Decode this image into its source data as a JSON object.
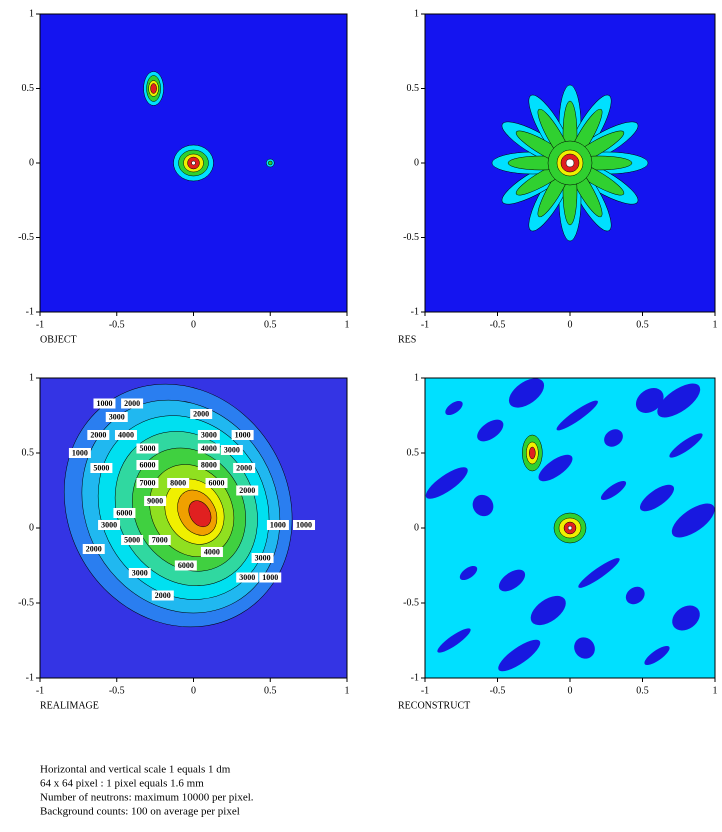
{
  "chart_data": [
    {
      "type": "contour",
      "title": "OBJECT",
      "xlim": [
        -1,
        1
      ],
      "ylim": [
        -1,
        1
      ],
      "xticks": [
        -1,
        -0.5,
        0,
        0.5,
        1
      ],
      "yticks": [
        -1,
        -0.5,
        0,
        0.5,
        1
      ]
    },
    {
      "type": "contour",
      "title": "RES",
      "xlim": [
        -1,
        1
      ],
      "ylim": [
        -1,
        1
      ],
      "xticks": [
        -1,
        -0.5,
        0,
        0.5,
        1
      ],
      "yticks": [
        -1,
        -0.5,
        0,
        0.5,
        1
      ]
    },
    {
      "type": "contour",
      "title": "REALIMAGE",
      "xlim": [
        -1,
        1
      ],
      "ylim": [
        -1,
        1
      ],
      "xticks": [
        -1,
        -0.5,
        0,
        0.5,
        1
      ],
      "yticks": [
        -1,
        -0.5,
        0,
        0.5,
        1
      ],
      "contour_labels": [
        1000,
        2000,
        2000,
        3000,
        2000,
        4000,
        3000,
        1000,
        1000,
        5000,
        4000,
        3000,
        5000,
        6000,
        8000,
        2000,
        7000,
        8000,
        9000,
        6000,
        2000,
        6000,
        3000,
        1000,
        1000,
        5000,
        7000,
        2000,
        3000,
        6000,
        4000,
        3000,
        1000,
        3000,
        2000
      ]
    },
    {
      "type": "contour",
      "title": "RECONSTRUCT",
      "xlim": [
        -1,
        1
      ],
      "ylim": [
        -1,
        1
      ],
      "xticks": [
        -1,
        -0.5,
        0,
        0.5,
        1
      ],
      "yticks": [
        -1,
        -0.5,
        0,
        0.5,
        1
      ]
    }
  ],
  "notes": [
    "Horizontal and vertical scale 1 equals 1 dm",
    "64 x 64 pixel : 1 pixel equals 1.6 mm",
    "Number of neutrons: maximum 10000 per pixel.",
    "Background counts: 100 on average per pixel"
  ]
}
